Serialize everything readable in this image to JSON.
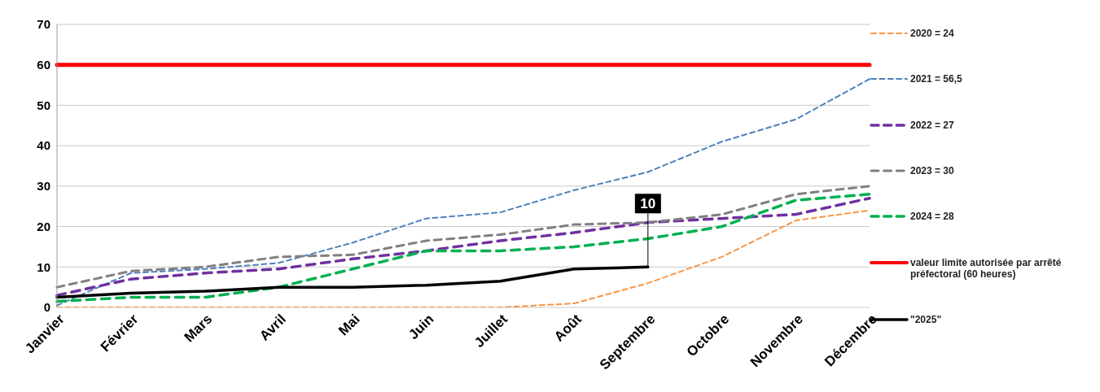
{
  "chart_data": {
    "type": "line",
    "categories": [
      "Janvier",
      "Février",
      "Mars",
      "Avril",
      "Mai",
      "Juin",
      "Juillet",
      "Août",
      "Septembre",
      "Octobre",
      "Novembre",
      "Décembre"
    ],
    "ylim": [
      0,
      70
    ],
    "yticks": [
      0,
      10,
      20,
      30,
      40,
      50,
      60,
      70
    ],
    "grid": "y",
    "legend": "right",
    "marker": "none",
    "series": [
      {
        "name": "2020 = 24",
        "color": "#f79646",
        "line_style": "dashed",
        "values": [
          0,
          0,
          0,
          0,
          0,
          0,
          0,
          1,
          6,
          12.5,
          21.5,
          24
        ]
      },
      {
        "name": "2021 = 56,5",
        "color": "#4f81bd",
        "line_style": "dashed",
        "values": [
          0.5,
          8.5,
          9.5,
          11,
          16,
          22,
          23.5,
          29,
          33.5,
          41,
          46.5,
          56.5
        ]
      },
      {
        "name": "2022 = 27",
        "color": "#7030a0",
        "line_style": "dashed",
        "values": [
          3,
          7,
          8.5,
          9.5,
          12,
          14,
          16.5,
          18.5,
          21,
          22,
          23,
          27
        ]
      },
      {
        "name": "2023 = 30",
        "color": "#808080",
        "line_style": "dashed",
        "values": [
          5,
          9,
          10,
          12.5,
          13,
          16.5,
          18,
          20.5,
          21,
          23,
          28,
          30
        ]
      },
      {
        "name": "2024 = 28",
        "color": "#00b050",
        "line_style": "dashed",
        "values": [
          1.5,
          2.5,
          2.5,
          5,
          9.5,
          14,
          14,
          15,
          17,
          20,
          26.5,
          28
        ]
      },
      {
        "name": "valeur limite autorisée par arrêté préfectoral (60 heures)",
        "color": "#ff0000",
        "line_style": "solid",
        "values": [
          60,
          60,
          60,
          60,
          60,
          60,
          60,
          60,
          60,
          60,
          60,
          60
        ]
      },
      {
        "name": "\"2025\"",
        "color": "#000000",
        "line_style": "solid",
        "values": [
          2.5,
          3.5,
          4,
          5,
          5,
          5.5,
          6.5,
          9.5,
          10,
          null,
          null,
          null
        ],
        "value_labels": [
          null,
          null,
          null,
          null,
          null,
          null,
          null,
          null,
          "10",
          null,
          null,
          null
        ]
      }
    ]
  }
}
